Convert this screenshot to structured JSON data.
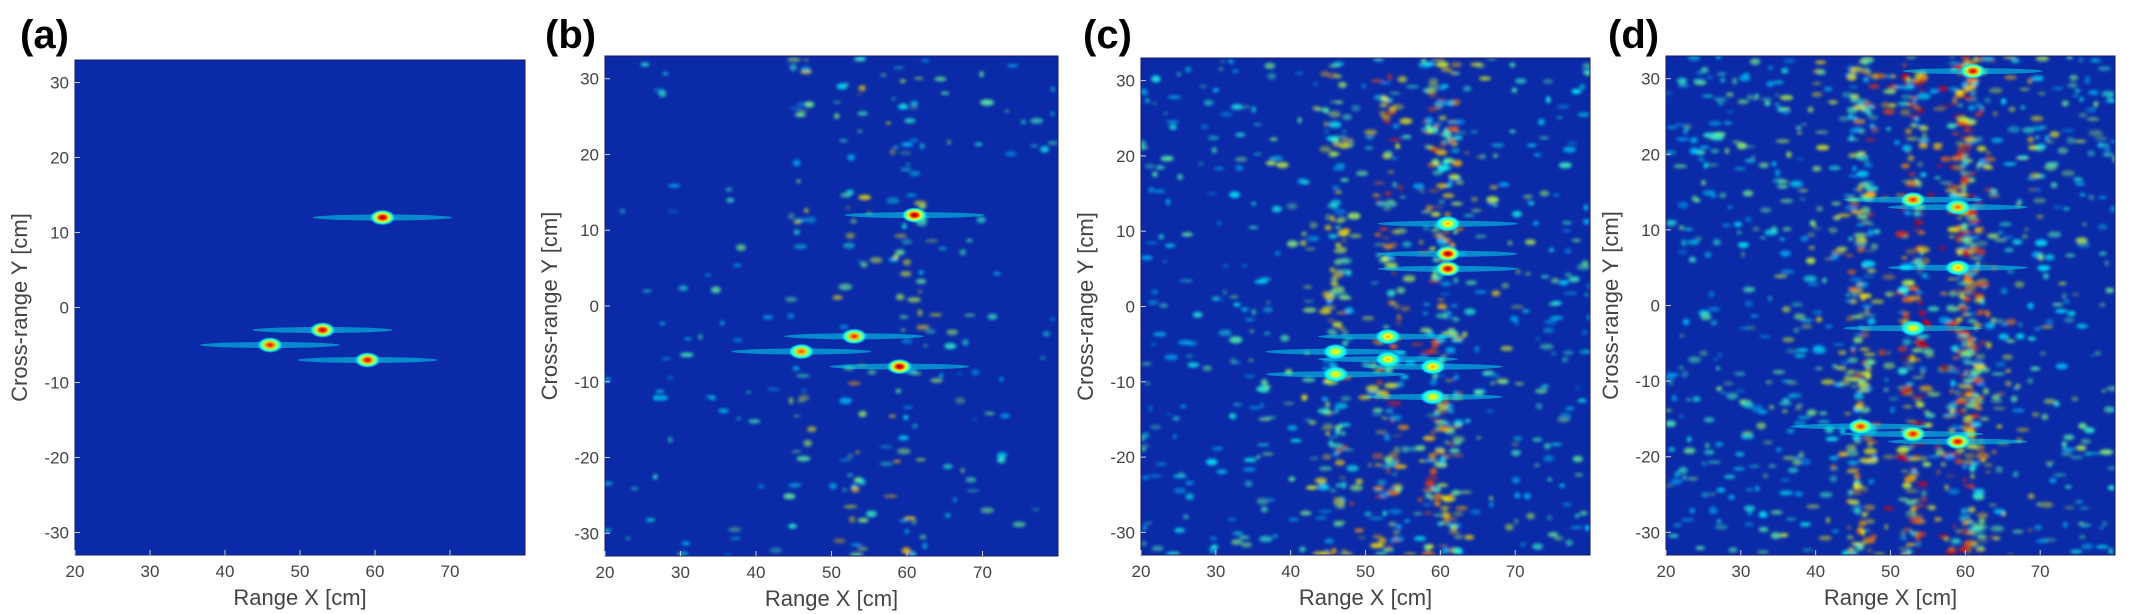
{
  "chart_data": [
    {
      "type": "heatmap",
      "panel_label": "(a)",
      "xlabel": "Range X [cm]",
      "ylabel": "Cross-range Y [cm]",
      "xlim": [
        20,
        80
      ],
      "ylim": [
        -33,
        33
      ],
      "xticks": [
        20,
        30,
        40,
        50,
        60,
        70
      ],
      "yticks": [
        30,
        20,
        10,
        0,
        -10,
        -20,
        -30
      ],
      "colormap": "jet",
      "background_color": "#0a2aa8",
      "noise_level": 0.0,
      "hot_spots": [
        {
          "x": 61,
          "y": 12,
          "intensity": 1.0
        },
        {
          "x": 53,
          "y": -3,
          "intensity": 0.95
        },
        {
          "x": 46,
          "y": -5,
          "intensity": 0.85
        },
        {
          "x": 59,
          "y": -7,
          "intensity": 0.9
        }
      ]
    },
    {
      "type": "heatmap",
      "panel_label": "(b)",
      "xlabel": "Range X [cm]",
      "ylabel": "Cross-range Y [cm]",
      "xlim": [
        20,
        80
      ],
      "ylim": [
        -33,
        33
      ],
      "xticks": [
        20,
        30,
        40,
        50,
        60,
        70
      ],
      "yticks": [
        30,
        20,
        10,
        0,
        -10,
        -20,
        -30
      ],
      "colormap": "jet",
      "background_color": "#0a2aa8",
      "noise_level": 0.1,
      "hot_spots": [
        {
          "x": 61,
          "y": 12,
          "intensity": 1.0
        },
        {
          "x": 53,
          "y": -4,
          "intensity": 0.8
        },
        {
          "x": 46,
          "y": -6,
          "intensity": 0.75
        },
        {
          "x": 59,
          "y": -8,
          "intensity": 1.0
        }
      ]
    },
    {
      "type": "heatmap",
      "panel_label": "(c)",
      "xlabel": "Range X [cm]",
      "ylabel": "Cross-range Y [cm]",
      "xlim": [
        20,
        80
      ],
      "ylim": [
        -33,
        33
      ],
      "xticks": [
        20,
        30,
        40,
        50,
        60,
        70
      ],
      "yticks": [
        30,
        20,
        10,
        0,
        -10,
        -20,
        -30
      ],
      "colormap": "jet",
      "background_color": "#0a2aa8",
      "noise_level": 0.35,
      "hot_spots": [
        {
          "x": 61,
          "y": 7,
          "intensity": 1.0
        },
        {
          "x": 61,
          "y": 5,
          "intensity": 0.95
        },
        {
          "x": 61,
          "y": 11,
          "intensity": 0.6
        },
        {
          "x": 53,
          "y": -4,
          "intensity": 0.6
        },
        {
          "x": 53,
          "y": -7,
          "intensity": 0.55
        },
        {
          "x": 46,
          "y": -6,
          "intensity": 0.5
        },
        {
          "x": 46,
          "y": -9,
          "intensity": 0.5
        },
        {
          "x": 59,
          "y": -8,
          "intensity": 0.6
        },
        {
          "x": 59,
          "y": -12,
          "intensity": 0.5
        }
      ]
    },
    {
      "type": "heatmap",
      "panel_label": "(d)",
      "xlabel": "Range X [cm]",
      "ylabel": "Cross-range Y [cm]",
      "xlim": [
        20,
        80
      ],
      "ylim": [
        -33,
        33
      ],
      "xticks": [
        20,
        30,
        40,
        50,
        60,
        70
      ],
      "yticks": [
        30,
        20,
        10,
        0,
        -10,
        -20,
        -30
      ],
      "colormap": "jet",
      "background_color": "#0a2aa8",
      "noise_level": 0.55,
      "hot_spots": [
        {
          "x": 61,
          "y": 31,
          "intensity": 0.9
        },
        {
          "x": 53,
          "y": 14,
          "intensity": 0.8
        },
        {
          "x": 59,
          "y": 13,
          "intensity": 0.7
        },
        {
          "x": 46,
          "y": -16,
          "intensity": 0.8
        },
        {
          "x": 53,
          "y": -17,
          "intensity": 0.85
        },
        {
          "x": 59,
          "y": -18,
          "intensity": 0.9
        },
        {
          "x": 53,
          "y": -3,
          "intensity": 0.5
        },
        {
          "x": 59,
          "y": 5,
          "intensity": 0.6
        }
      ]
    }
  ]
}
